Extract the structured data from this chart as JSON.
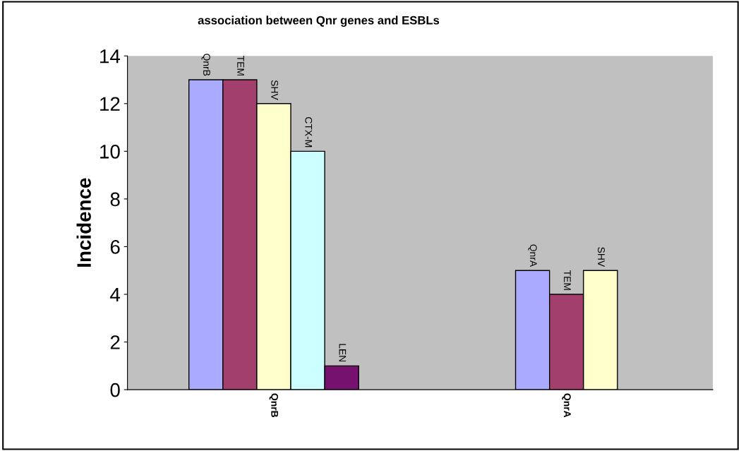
{
  "chart_data": {
    "type": "bar",
    "title": "association between Qnr genes and ESBLs",
    "ylabel": "Incidence",
    "categories": [
      "QnrB",
      "QnrA"
    ],
    "series": [
      {
        "color": "#aaaaff",
        "values": [
          13,
          5
        ],
        "value_labels": [
          "QnrB",
          "QnrA"
        ]
      },
      {
        "color": "#a33f6d",
        "values": [
          13,
          4
        ],
        "value_labels": [
          "TEM",
          "TEM"
        ]
      },
      {
        "color": "#ffffcc",
        "values": [
          12,
          5
        ],
        "value_labels": [
          "SHV",
          "SHV"
        ]
      },
      {
        "color": "#ccffff",
        "values": [
          10,
          null
        ],
        "value_labels": [
          "CTX-M",
          null
        ]
      },
      {
        "color": "#771170",
        "values": [
          1,
          null
        ],
        "value_labels": [
          "LEN",
          null
        ]
      }
    ],
    "ylim": [
      0,
      14
    ],
    "yticks": [
      0,
      2,
      4,
      6,
      8,
      10,
      12,
      14
    ],
    "grid": false,
    "legend": false
  }
}
